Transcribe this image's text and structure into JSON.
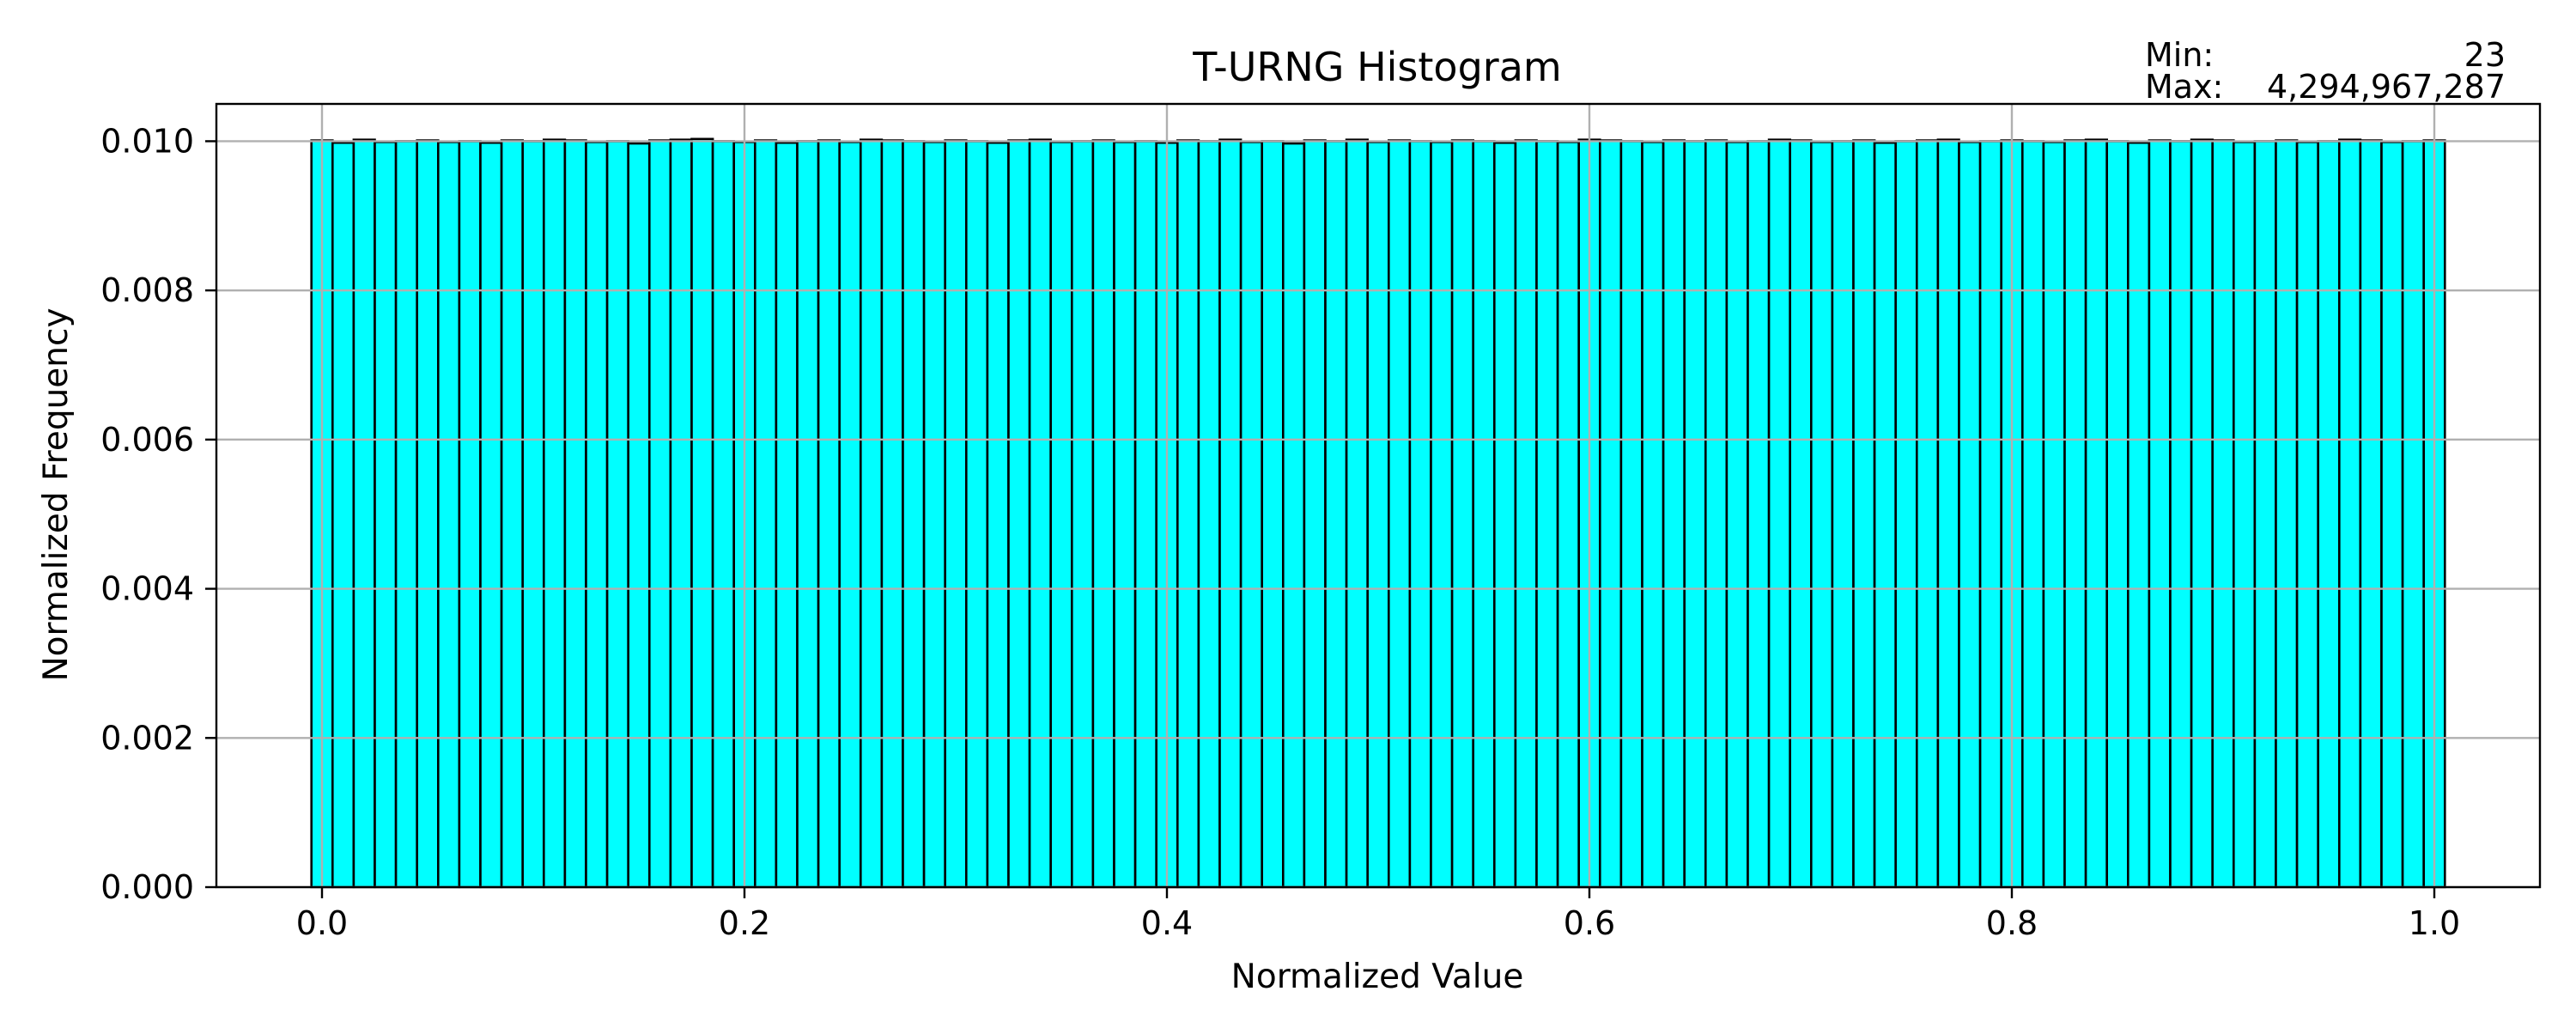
{
  "chart_data": {
    "type": "bar",
    "title": "T-URNG Histogram",
    "xlabel": "Normalized Value",
    "ylabel": "Normalized Frequency",
    "xlim": [
      -0.05,
      1.05
    ],
    "ylim": [
      0,
      0.0105
    ],
    "xticks": [
      0.0,
      0.2,
      0.4,
      0.6,
      0.8,
      1.0
    ],
    "xtick_labels": [
      "0.0",
      "0.2",
      "0.4",
      "0.6",
      "0.8",
      "1.0"
    ],
    "yticks": [
      0.0,
      0.002,
      0.004,
      0.006,
      0.008,
      0.01
    ],
    "ytick_labels": [
      "0.000",
      "0.002",
      "0.004",
      "0.006",
      "0.008",
      "0.010"
    ],
    "grid": true,
    "bar_color": "#00ffff",
    "bar_edge_color": "#000000",
    "bin_range": [
      -0.005,
      1.005
    ],
    "bin_count": 101,
    "values": [
      0.01001,
      0.00998,
      0.01002,
      0.00999,
      0.01,
      0.01001,
      0.00999,
      0.01,
      0.00998,
      0.01001,
      0.01,
      0.01002,
      0.01001,
      0.00999,
      0.01,
      0.00997,
      0.01001,
      0.01002,
      0.01003,
      0.01,
      0.00999,
      0.01001,
      0.00998,
      0.01,
      0.01001,
      0.00999,
      0.01002,
      0.01001,
      0.01,
      0.00999,
      0.01001,
      0.01,
      0.00998,
      0.01001,
      0.01002,
      0.00999,
      0.01,
      0.01001,
      0.00999,
      0.01,
      0.00998,
      0.01001,
      0.01,
      0.01002,
      0.00999,
      0.01,
      0.00997,
      0.01001,
      0.01,
      0.01002,
      0.00999,
      0.01001,
      0.01,
      0.00999,
      0.01001,
      0.01,
      0.00998,
      0.01001,
      0.01,
      0.00999,
      0.01002,
      0.01001,
      0.01,
      0.00999,
      0.01001,
      0.01,
      0.01001,
      0.00999,
      0.01,
      0.01002,
      0.01001,
      0.00999,
      0.01,
      0.01001,
      0.00998,
      0.01,
      0.01001,
      0.01002,
      0.00999,
      0.01,
      0.01001,
      0.01,
      0.00999,
      0.01001,
      0.01002,
      0.01,
      0.00998,
      0.01001,
      0.01,
      0.01002,
      0.01001,
      0.00999,
      0.01,
      0.01001,
      0.00999,
      0.01,
      0.01002,
      0.01001,
      0.00999,
      0.01,
      0.01001
    ]
  },
  "stats": {
    "min_label": "Min:",
    "min_value": "23",
    "max_label": "Max:",
    "max_value": "4,294,967,287"
  }
}
